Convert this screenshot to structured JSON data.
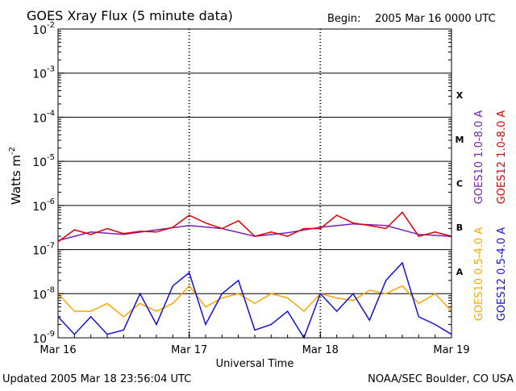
{
  "header": {
    "title": "GOES Xray Flux (5 minute data)",
    "begin_label": "Begin:",
    "begin_value": "2005 Mar 16 0000 UTC"
  },
  "footer": {
    "updated": "Updated 2005 Mar 18 23:56:04 UTC",
    "source": "NOAA/SEC Boulder, CO USA"
  },
  "colors": {
    "goes10_long": "#7a1fb8",
    "goes12_long": "#e00000",
    "goes10_short": "#ffa500",
    "goes12_short": "#1010e0"
  },
  "chart_data": {
    "type": "line",
    "title": "GOES Xray Flux (5 minute data)",
    "xlabel": "Universal Time",
    "ylabel_base": "Watts m",
    "ylabel_exp": "-2",
    "y_scale": "log",
    "ylim": [
      1e-09,
      0.01
    ],
    "xlim": [
      "2005-03-16T00:00",
      "2005-03-19T00:00"
    ],
    "x_ticks": [
      {
        "label": "Mar 16",
        "x": "2005-03-16"
      },
      {
        "label": "Mar 17",
        "x": "2005-03-17"
      },
      {
        "label": "Mar 18",
        "x": "2005-03-18"
      },
      {
        "label": "Mar 19",
        "x": "2005-03-19"
      }
    ],
    "y_ticks": [
      {
        "base": "10",
        "exp": "-2",
        "value": 0.01
      },
      {
        "base": "10",
        "exp": "-3",
        "value": 0.001
      },
      {
        "base": "10",
        "exp": "-4",
        "value": 0.0001
      },
      {
        "base": "10",
        "exp": "-5",
        "value": 1e-05
      },
      {
        "base": "10",
        "exp": "-6",
        "value": 1e-06
      },
      {
        "base": "10",
        "exp": "-7",
        "value": 1e-07
      },
      {
        "base": "10",
        "exp": "-8",
        "value": 1e-08
      },
      {
        "base": "10",
        "exp": "-9",
        "value": 1e-09
      }
    ],
    "flare_classes": [
      {
        "label": "X",
        "value": 0.0001
      },
      {
        "label": "M",
        "value": 1e-05
      },
      {
        "label": "C",
        "value": 1e-06
      },
      {
        "label": "B",
        "value": 1e-07
      },
      {
        "label": "A",
        "value": 1e-08
      }
    ],
    "grid": "horizontal lines at each decade, dashed vertical lines at day boundaries",
    "legend_placement": "right, vertical",
    "series": [
      {
        "name": "GOES10 1.0-8.0 A",
        "color": "#7a1fb8",
        "x": [
          "2005-03-16T00:00",
          "2005-03-16T06:00",
          "2005-03-16T12:00",
          "2005-03-16T18:00",
          "2005-03-17T00:00",
          "2005-03-17T06:00",
          "2005-03-17T12:00",
          "2005-03-17T18:00",
          "2005-03-18T00:00",
          "2005-03-18T06:00",
          "2005-03-18T12:00",
          "2005-03-18T18:00",
          "2005-03-19T00:00"
        ],
        "values": [
          1.6e-07,
          2.5e-07,
          2.2e-07,
          2.8e-07,
          3.5e-07,
          3e-07,
          2e-07,
          2.4e-07,
          3.2e-07,
          3.8e-07,
          3.5e-07,
          2.2e-07,
          2e-07
        ]
      },
      {
        "name": "GOES12 1.0-8.0 A",
        "color": "#e00000",
        "x": [
          "2005-03-16T00:00",
          "2005-03-16T03:00",
          "2005-03-16T06:00",
          "2005-03-16T09:00",
          "2005-03-16T12:00",
          "2005-03-16T15:00",
          "2005-03-16T18:00",
          "2005-03-16T21:00",
          "2005-03-17T00:00",
          "2005-03-17T03:00",
          "2005-03-17T06:00",
          "2005-03-17T09:00",
          "2005-03-17T12:00",
          "2005-03-17T15:00",
          "2005-03-17T18:00",
          "2005-03-17T21:00",
          "2005-03-18T00:00",
          "2005-03-18T03:00",
          "2005-03-18T06:00",
          "2005-03-18T09:00",
          "2005-03-18T12:00",
          "2005-03-18T15:00",
          "2005-03-18T18:00",
          "2005-03-18T21:00",
          "2005-03-19T00:00"
        ],
        "values": [
          1.5e-07,
          2.8e-07,
          2.2e-07,
          3e-07,
          2.3e-07,
          2.6e-07,
          2.5e-07,
          3.2e-07,
          6e-07,
          4e-07,
          3e-07,
          4.5e-07,
          2e-07,
          2.5e-07,
          2e-07,
          3e-07,
          3e-07,
          6e-07,
          4e-07,
          3.5e-07,
          3e-07,
          7e-07,
          2e-07,
          2.5e-07,
          2e-07
        ]
      },
      {
        "name": "GOES10 0.5-4.0 A",
        "color": "#ffa500",
        "x": [
          "2005-03-16T00:00",
          "2005-03-16T03:00",
          "2005-03-16T06:00",
          "2005-03-16T09:00",
          "2005-03-16T12:00",
          "2005-03-16T15:00",
          "2005-03-16T18:00",
          "2005-03-16T21:00",
          "2005-03-17T00:00",
          "2005-03-17T03:00",
          "2005-03-17T06:00",
          "2005-03-17T09:00",
          "2005-03-17T12:00",
          "2005-03-17T15:00",
          "2005-03-17T18:00",
          "2005-03-17T21:00",
          "2005-03-18T00:00",
          "2005-03-18T03:00",
          "2005-03-18T06:00",
          "2005-03-18T09:00",
          "2005-03-18T12:00",
          "2005-03-18T15:00",
          "2005-03-18T18:00",
          "2005-03-18T21:00",
          "2005-03-19T00:00"
        ],
        "values": [
          1e-08,
          4e-09,
          4e-09,
          6e-09,
          3e-09,
          6e-09,
          4e-09,
          6e-09,
          1.5e-08,
          5e-09,
          8e-09,
          1e-08,
          6e-09,
          1e-08,
          8e-09,
          4e-09,
          1e-08,
          8e-09,
          7e-09,
          1.2e-08,
          1e-08,
          1.5e-08,
          6e-09,
          1e-08,
          4e-09
        ]
      },
      {
        "name": "GOES12 0.5-4.0 A",
        "color": "#1010e0",
        "x": [
          "2005-03-16T00:00",
          "2005-03-16T03:00",
          "2005-03-16T06:00",
          "2005-03-16T09:00",
          "2005-03-16T12:00",
          "2005-03-16T15:00",
          "2005-03-16T18:00",
          "2005-03-16T21:00",
          "2005-03-17T00:00",
          "2005-03-17T03:00",
          "2005-03-17T06:00",
          "2005-03-17T09:00",
          "2005-03-17T12:00",
          "2005-03-17T15:00",
          "2005-03-17T18:00",
          "2005-03-17T21:00",
          "2005-03-18T00:00",
          "2005-03-18T03:00",
          "2005-03-18T06:00",
          "2005-03-18T09:00",
          "2005-03-18T12:00",
          "2005-03-18T15:00",
          "2005-03-18T18:00",
          "2005-03-18T21:00",
          "2005-03-19T00:00"
        ],
        "values": [
          3e-09,
          1.2e-09,
          3e-09,
          1.2e-09,
          1.5e-09,
          1e-08,
          2e-09,
          1.5e-08,
          3e-08,
          2e-09,
          1e-08,
          2e-08,
          1.5e-09,
          2e-09,
          4e-09,
          1e-09,
          1e-08,
          4e-09,
          1e-08,
          2.5e-09,
          2e-08,
          5e-08,
          3e-09,
          2e-09,
          1.2e-09
        ]
      }
    ]
  }
}
